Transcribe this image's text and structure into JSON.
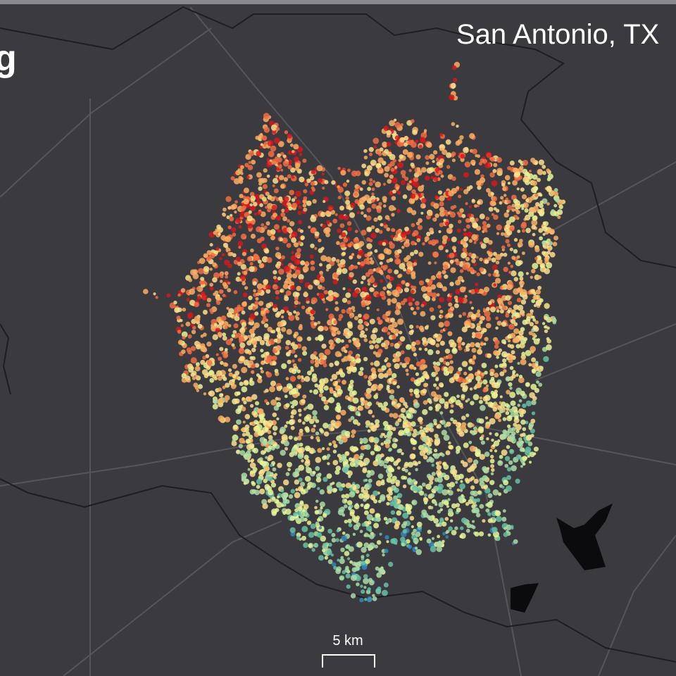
{
  "header": {
    "title": "g",
    "location": "San Antonio, TX"
  },
  "scale_bar": {
    "label": "5 km"
  }
}
